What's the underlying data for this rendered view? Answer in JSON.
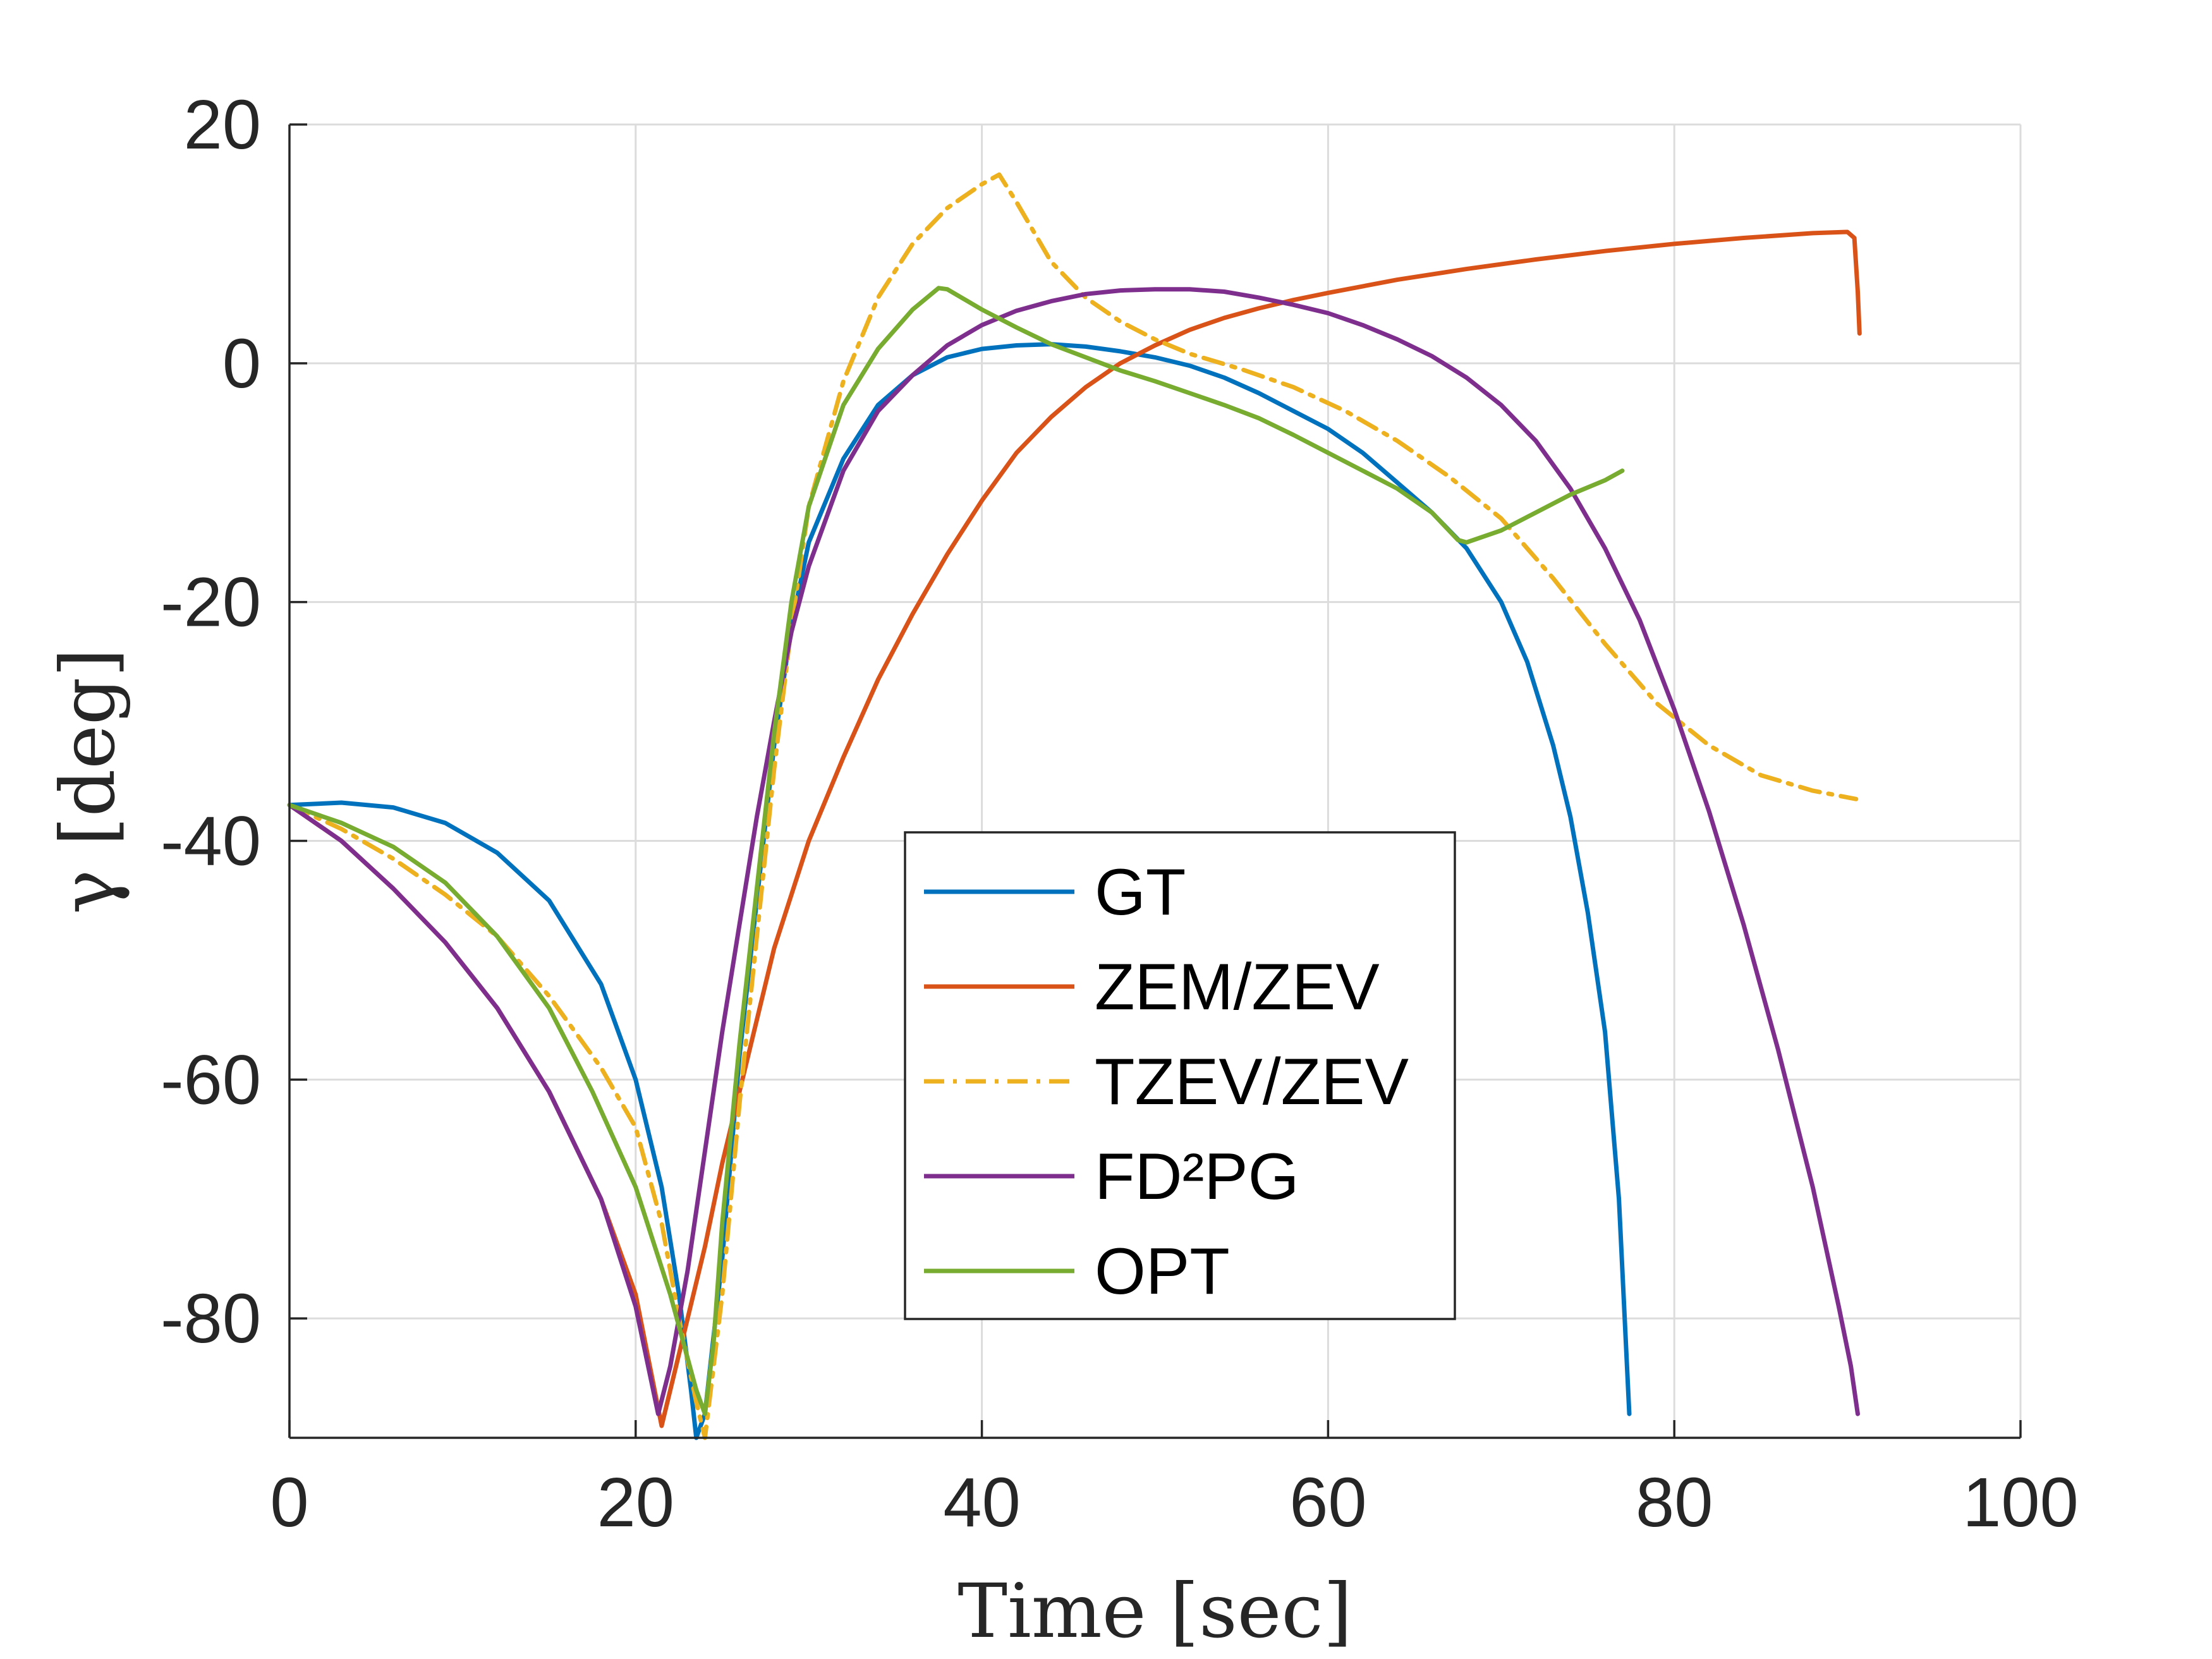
{
  "chart_data": {
    "type": "line",
    "xlabel": "Time [sec]",
    "ylabel": "γ [deg]",
    "xlim": [
      0,
      100
    ],
    "ylim": [
      -90,
      20
    ],
    "xticks": [
      0,
      20,
      40,
      60,
      80,
      100
    ],
    "yticks": [
      -80,
      -60,
      -40,
      -20,
      0,
      20
    ],
    "xtick_labels": [
      "0",
      "20",
      "40",
      "60",
      "80",
      "100"
    ],
    "ytick_labels": [
      "-80",
      "-60",
      "-40",
      "-20",
      "0",
      "20"
    ],
    "grid": true,
    "legend_position": "center",
    "series": [
      {
        "name": "GT",
        "color": "#0072BD",
        "dash": "solid",
        "x": [
          0,
          3,
          6,
          9,
          12,
          15,
          18,
          20,
          21.5,
          22.5,
          23.2,
          23.5,
          24,
          25,
          26,
          27,
          28,
          29,
          30,
          32,
          34,
          36,
          38,
          40,
          42,
          44,
          46,
          48,
          50,
          52,
          54,
          56,
          58,
          60,
          62,
          64,
          66,
          68,
          70,
          71.5,
          73,
          74,
          75,
          76,
          76.8,
          77.4
        ],
        "y": [
          -37,
          -36.8,
          -37.2,
          -38.5,
          -41,
          -45,
          -52,
          -60,
          -69,
          -78,
          -86,
          -90,
          -88,
          -75,
          -58,
          -45,
          -32,
          -22,
          -15,
          -8,
          -3.5,
          -1,
          0.5,
          1.2,
          1.5,
          1.6,
          1.4,
          1,
          0.5,
          -0.2,
          -1.2,
          -2.5,
          -4,
          -5.5,
          -7.5,
          -10,
          -12.5,
          -15.5,
          -20,
          -25,
          -32,
          -38,
          -46,
          -56,
          -70,
          -88
        ]
      },
      {
        "name": "ZEM/ZEV",
        "color": "#D95319",
        "dash": "solid",
        "x": [
          0,
          3,
          6,
          9,
          12,
          15,
          18,
          20,
          21.5,
          23,
          24,
          25,
          26,
          27,
          28,
          30,
          32,
          34,
          36,
          38,
          40,
          42,
          44,
          46,
          48,
          50,
          52,
          54,
          56,
          58,
          60,
          64,
          68,
          72,
          76,
          80,
          84,
          88,
          90,
          90.4,
          90.6,
          90.7
        ],
        "y": [
          -37,
          -40,
          -44,
          -48.5,
          -54,
          -61,
          -70,
          -78,
          -89,
          -80,
          -74,
          -67,
          -61,
          -55,
          -49,
          -40,
          -33,
          -26.5,
          -21,
          -16,
          -11.5,
          -7.5,
          -4.5,
          -2,
          0,
          1.5,
          2.8,
          3.8,
          4.6,
          5.3,
          5.9,
          7,
          7.9,
          8.7,
          9.4,
          10,
          10.5,
          10.9,
          11,
          10.5,
          6,
          2.5
        ]
      },
      {
        "name": "TZEV/ZEV",
        "color": "#EDB120",
        "dash": "dashdot",
        "x": [
          0,
          3,
          6,
          9,
          12,
          15,
          18,
          20,
          21.5,
          22.5,
          23.5,
          24,
          25,
          26,
          27,
          28,
          29,
          30,
          32,
          34,
          36,
          38,
          40,
          41,
          42,
          44,
          46,
          48,
          50,
          52,
          55,
          58,
          61,
          64,
          67,
          70,
          73,
          76,
          79,
          82,
          85,
          88,
          90.5
        ],
        "y": [
          -37,
          -39,
          -41.5,
          -44.5,
          -48,
          -53,
          -59,
          -64,
          -72,
          -80,
          -87,
          -90,
          -78,
          -62,
          -48,
          -34,
          -22,
          -12,
          -1.5,
          5.5,
          10,
          13,
          15,
          15.8,
          13.5,
          8.5,
          5.5,
          3.5,
          2,
          0.8,
          -0.5,
          -2,
          -4,
          -6.5,
          -9.5,
          -13,
          -18,
          -23.5,
          -28.5,
          -32,
          -34.5,
          -35.8,
          -36.5
        ]
      },
      {
        "name": "FD²PG",
        "color": "#7E2F8E",
        "dash": "solid",
        "x": [
          0,
          3,
          6,
          9,
          12,
          15,
          18,
          20,
          21.3,
          22,
          23,
          24,
          25,
          26,
          27,
          28,
          29,
          30,
          32,
          34,
          36,
          38,
          40,
          42,
          44,
          46,
          48,
          50,
          52,
          54,
          56,
          58,
          60,
          62,
          64,
          66,
          68,
          70,
          72,
          74,
          76,
          78,
          80,
          82,
          84,
          86,
          88,
          89.5,
          90.2,
          90.6
        ],
        "y": [
          -37,
          -40,
          -44,
          -48.5,
          -54,
          -61,
          -70,
          -79,
          -88,
          -84,
          -76,
          -66,
          -56,
          -47,
          -38,
          -30,
          -22.5,
          -17,
          -9,
          -4,
          -1,
          1.5,
          3.2,
          4.4,
          5.2,
          5.8,
          6.1,
          6.2,
          6.2,
          6,
          5.5,
          4.9,
          4.2,
          3.2,
          2,
          0.6,
          -1.2,
          -3.5,
          -6.5,
          -10.5,
          -15.5,
          -21.5,
          -29,
          -37.5,
          -47,
          -57.5,
          -69,
          -79,
          -84,
          -88
        ]
      },
      {
        "name": "OPT",
        "color": "#77AC30",
        "dash": "solid",
        "x": [
          0,
          3,
          6,
          9,
          12,
          15,
          17.5,
          20,
          22,
          23.5,
          24,
          24.5,
          25,
          26,
          27,
          28,
          29,
          30,
          32,
          34,
          36,
          37.5,
          38,
          40,
          42,
          44,
          46,
          48,
          50,
          52,
          54,
          56,
          58,
          60,
          62,
          64,
          66,
          67.5,
          68,
          70,
          72,
          74,
          76,
          77
        ],
        "y": [
          -37,
          -38.5,
          -40.5,
          -43.5,
          -48,
          -54,
          -61,
          -69,
          -78,
          -86,
          -88,
          -82,
          -72,
          -57,
          -44,
          -31,
          -20,
          -12,
          -3.5,
          1.2,
          4.5,
          6.3,
          6.2,
          4.5,
          3,
          1.6,
          0.5,
          -0.6,
          -1.5,
          -2.5,
          -3.5,
          -4.6,
          -6,
          -7.5,
          -9,
          -10.5,
          -12.5,
          -14.8,
          -15,
          -14,
          -12.5,
          -11,
          -9.8,
          -9
        ]
      }
    ]
  }
}
